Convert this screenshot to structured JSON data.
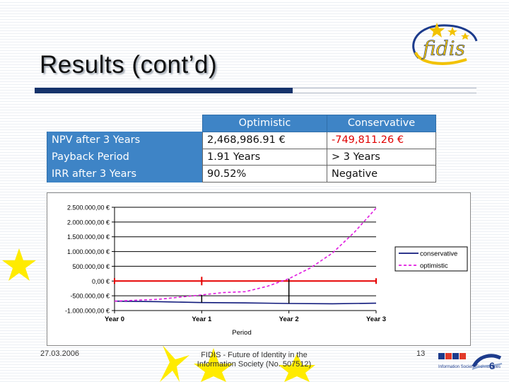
{
  "slide": {
    "title": "Results (cont’d)"
  },
  "logo": {
    "text": "fidis"
  },
  "table": {
    "headers": [
      "Optimistic",
      "Conservative"
    ],
    "rows": [
      {
        "label": "NPV after 3 Years",
        "optimistic": "2,468,986.91 €",
        "conservative": "-749,811.26 €"
      },
      {
        "label": "Payback Period",
        "optimistic": "1.91 Years",
        "conservative": "> 3 Years"
      },
      {
        "label": "IRR after 3 Years",
        "optimistic": "90.52%",
        "conservative": "Negative"
      }
    ]
  },
  "chart_data": {
    "type": "line",
    "categories": [
      "Year 0",
      "Year 1",
      "Year 2",
      "Year 3"
    ],
    "xlabel": "Period",
    "ylabel": "",
    "ylim": [
      -1000000,
      2500000
    ],
    "y_ticks": [
      2500000,
      2000000,
      1500000,
      1000000,
      500000,
      0,
      -500000,
      -1000000
    ],
    "y_tick_labels": [
      "2.500.000,00 €",
      "2.000.000,00 €",
      "1.500.000,00 €",
      "1.000.000,00 €",
      "500.000,00 €",
      "0,00 €",
      "-500.000,00 €",
      "-1.000.000,00 €"
    ],
    "grid": true,
    "legend": "right",
    "series": [
      {
        "name": "conservative",
        "color": "#101a7c",
        "style": "solid",
        "x": [
          0,
          0.5,
          1,
          1.5,
          2,
          2.5,
          3
        ],
        "values": [
          -680000,
          -700000,
          -730000,
          -740000,
          -760000,
          -770000,
          -750000
        ]
      },
      {
        "name": "optimistic",
        "color": "#e01be0",
        "style": "dashed",
        "x": [
          0,
          0.5,
          1,
          1.25,
          1.5,
          1.75,
          2,
          2.25,
          2.5,
          2.75,
          3
        ],
        "values": [
          -680000,
          -620000,
          -470000,
          -390000,
          -360000,
          -180000,
          80000,
          450000,
          950000,
          1650000,
          2470000
        ]
      }
    ],
    "reference_line": {
      "value": 0,
      "color": "#e60000"
    },
    "markers": [
      {
        "x": 1,
        "label": "Year 1"
      },
      {
        "x": 2,
        "label": "Year 2"
      }
    ]
  },
  "footer": {
    "date": "27.03.2006",
    "line1": "FIDIS - Future of Identity in the",
    "line2": "Information Society (No. 507512)",
    "page": "13",
    "logo_text": "Information Society Technologies"
  }
}
